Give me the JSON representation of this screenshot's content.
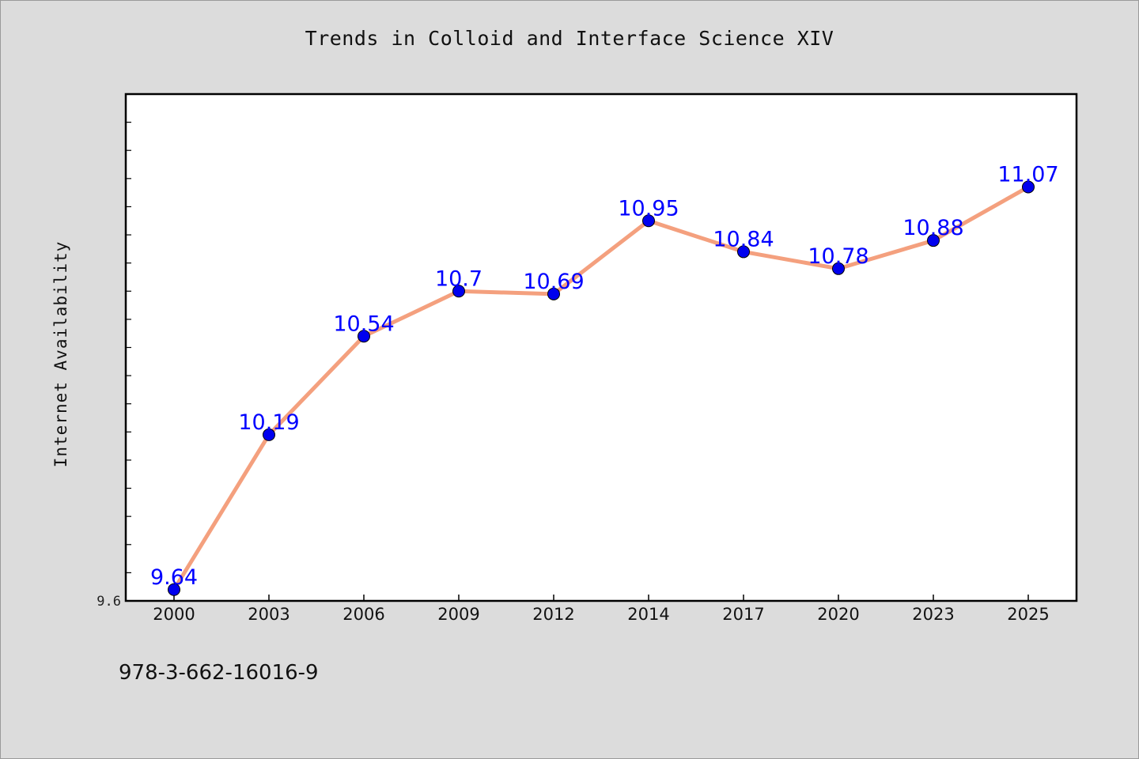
{
  "chart_data": {
    "type": "line",
    "title": "Trends in Colloid and Interface Science XIV",
    "ylabel": "Internet Availability",
    "xlabel": "",
    "categories": [
      "2000",
      "2003",
      "2006",
      "2009",
      "2012",
      "2014",
      "2017",
      "2020",
      "2023",
      "2025"
    ],
    "series": [
      {
        "values": [
          9.64,
          10.19,
          10.54,
          10.7,
          10.69,
          10.95,
          10.84,
          10.78,
          10.88,
          11.07
        ]
      }
    ],
    "data_labels": [
      "9.64",
      "10.19",
      "10.54",
      "10.7",
      "10.69",
      "10.95",
      "10.84",
      "10.78",
      "10.88",
      "11.07"
    ],
    "ylim": [
      9.6,
      11.4
    ],
    "ytick_labels": [
      "9.6"
    ],
    "grid": false,
    "colors": {
      "line": "#f4a07e",
      "marker": "#0000ee",
      "data_label": "#0000ff",
      "plot_background": "#ffffff",
      "page_background": "#dcdcdc"
    }
  },
  "footer": {
    "isbn": "978-3-662-16016-9"
  }
}
